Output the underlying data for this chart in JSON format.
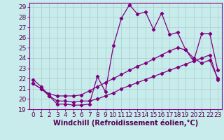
{
  "xlabel": "Windchill (Refroidissement éolien,°C)",
  "background_color": "#c8ecec",
  "grid_color": "#b0d0d0",
  "line_color": "#800080",
  "xlim": [
    -0.5,
    23.5
  ],
  "ylim": [
    19,
    29.4
  ],
  "xticks": [
    0,
    1,
    2,
    3,
    4,
    5,
    6,
    7,
    8,
    9,
    10,
    11,
    12,
    13,
    14,
    15,
    16,
    17,
    18,
    19,
    20,
    21,
    22,
    23
  ],
  "yticks": [
    19,
    20,
    21,
    22,
    23,
    24,
    25,
    26,
    27,
    28,
    29
  ],
  "line1_x": [
    0,
    1,
    2,
    3,
    4,
    5,
    6,
    7,
    8,
    9,
    10,
    11,
    12,
    13,
    14,
    15,
    16,
    17,
    18,
    19,
    20,
    21,
    22,
    23
  ],
  "line1_y": [
    21.9,
    21.2,
    20.3,
    19.5,
    19.5,
    19.4,
    19.4,
    19.5,
    22.2,
    20.7,
    25.2,
    27.9,
    29.2,
    28.3,
    28.5,
    26.8,
    28.4,
    26.3,
    26.5,
    24.8,
    23.7,
    26.4,
    26.4,
    22.8
  ],
  "line2_x": [
    0,
    1,
    2,
    3,
    4,
    5,
    6,
    7,
    8,
    9,
    10,
    11,
    12,
    13,
    14,
    15,
    16,
    17,
    18,
    19,
    20,
    21,
    22,
    23
  ],
  "line2_y": [
    21.5,
    21.0,
    20.5,
    20.3,
    20.3,
    20.3,
    20.4,
    20.8,
    21.2,
    21.6,
    22.0,
    22.4,
    22.8,
    23.2,
    23.5,
    23.9,
    24.3,
    24.7,
    25.0,
    24.8,
    24.0,
    23.5,
    23.8,
    22.0
  ],
  "line3_x": [
    0,
    1,
    2,
    3,
    4,
    5,
    6,
    7,
    8,
    9,
    10,
    11,
    12,
    13,
    14,
    15,
    16,
    17,
    18,
    19,
    20,
    21,
    22,
    23
  ],
  "line3_y": [
    21.5,
    21.0,
    20.3,
    19.8,
    19.8,
    19.7,
    19.8,
    19.8,
    20.0,
    20.3,
    20.6,
    21.0,
    21.3,
    21.6,
    21.9,
    22.2,
    22.5,
    22.8,
    23.1,
    23.4,
    23.7,
    24.0,
    24.3,
    21.9
  ],
  "tick_fontsize": 6.5,
  "label_fontsize": 7.0
}
